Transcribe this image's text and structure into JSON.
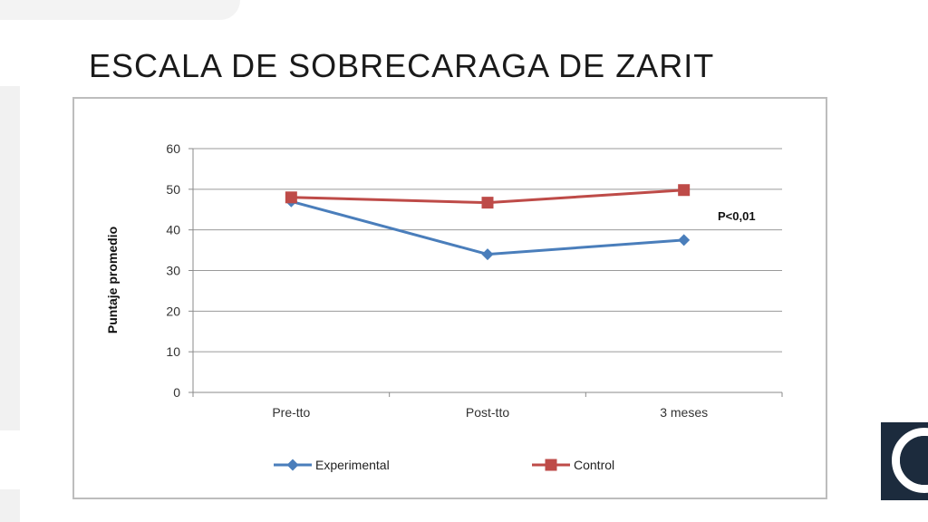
{
  "slide": {
    "title": "ESCALA DE SOBRECARAGA DE ZARIT"
  },
  "chart_data": {
    "type": "line",
    "title": "",
    "xlabel": "",
    "ylabel": "Puntaje promedio",
    "categories": [
      "Pre-tto",
      "Post-tto",
      "3 meses"
    ],
    "ylim": [
      0,
      60
    ],
    "yticks": [
      0,
      10,
      20,
      30,
      40,
      50,
      60
    ],
    "grid": true,
    "legend_position": "bottom",
    "series": [
      {
        "name": "Experimental",
        "values": [
          47,
          34,
          37.5
        ],
        "color": "#4a7ebb",
        "marker": "diamond"
      },
      {
        "name": "Control",
        "values": [
          48,
          46.7,
          49.8
        ],
        "color": "#be4b48",
        "marker": "square"
      }
    ],
    "annotations": [
      {
        "text": "P<0,01"
      }
    ]
  },
  "logo": {
    "icon": "circle-logo-icon"
  }
}
